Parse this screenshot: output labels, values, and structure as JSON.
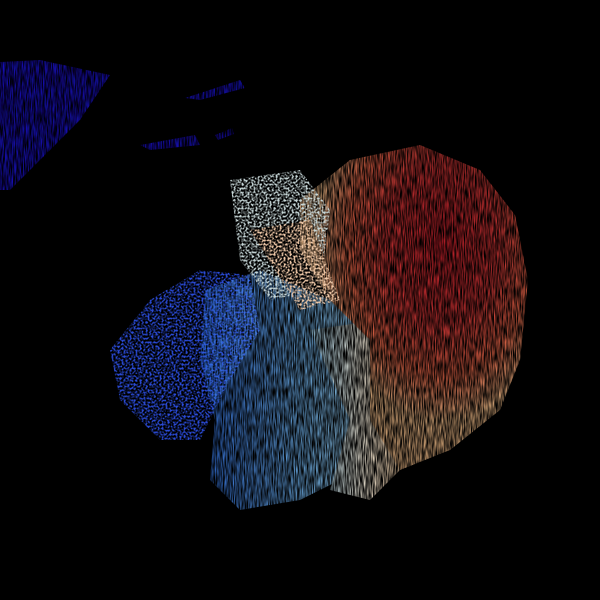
{
  "image": {
    "description_type": "doppler-velocity-field",
    "background_color": "#000000",
    "colors": {
      "strong_inbound": "#1a10d8",
      "inbound": "#2f6fe0",
      "weak_inbound": "#9fd4f2",
      "near_zero": "#f4efe0",
      "weak_outbound": "#f6c08a",
      "outbound": "#ee6a4a",
      "strong_outbound": "#d2202c"
    }
  }
}
